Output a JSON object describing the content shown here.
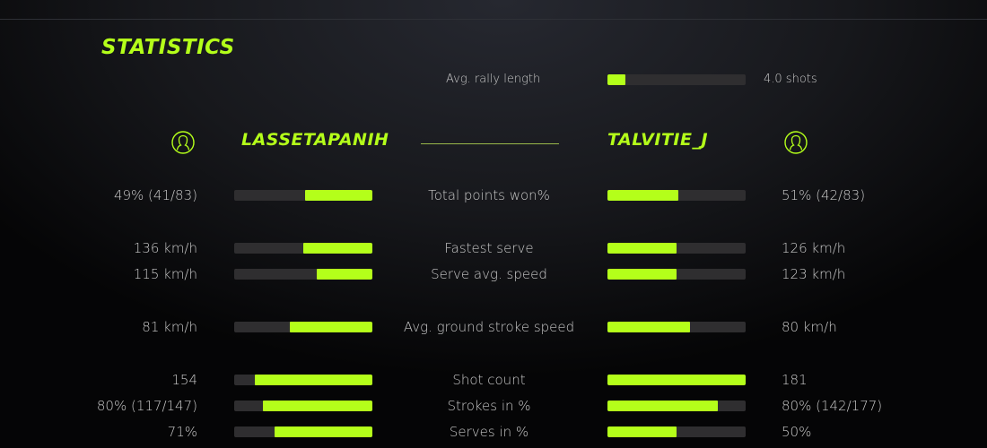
{
  "title": "STATISTICS",
  "accent_color": "#b4ff1a",
  "rally": {
    "label": "Avg. rally length",
    "value": "4.0 shots",
    "fill": 0.13
  },
  "players": {
    "left": {
      "name": "LASSETAPANIH",
      "icon": "user-circle-icon"
    },
    "right": {
      "name": "TALVITIE_J",
      "icon": "user-circle-icon"
    }
  },
  "stats": [
    {
      "label": "Total points won%",
      "left": "49% (41/83)",
      "right": "51% (42/83)",
      "left_fill": 0.49,
      "right_fill": 0.51
    },
    {
      "label": "Fastest serve",
      "left": "136 km/h",
      "right": "126 km/h",
      "left_fill": 0.5,
      "right_fill": 0.5
    },
    {
      "label": "Serve avg. speed",
      "left": "115 km/h",
      "right": "123 km/h",
      "left_fill": 0.4,
      "right_fill": 0.5
    },
    {
      "label": "Avg. ground stroke speed",
      "left": "81 km/h",
      "right": "80 km/h",
      "left_fill": 0.6,
      "right_fill": 0.6
    },
    {
      "label": "Shot count",
      "left": "154",
      "right": "181",
      "left_fill": 0.85,
      "right_fill": 1.0
    },
    {
      "label": "Strokes in %",
      "left": "80% (117/147)",
      "right": "80% (142/177)",
      "left_fill": 0.79,
      "right_fill": 0.8
    },
    {
      "label": "Serves in %",
      "left": "71%",
      "right": "50%",
      "left_fill": 0.71,
      "right_fill": 0.5
    }
  ]
}
